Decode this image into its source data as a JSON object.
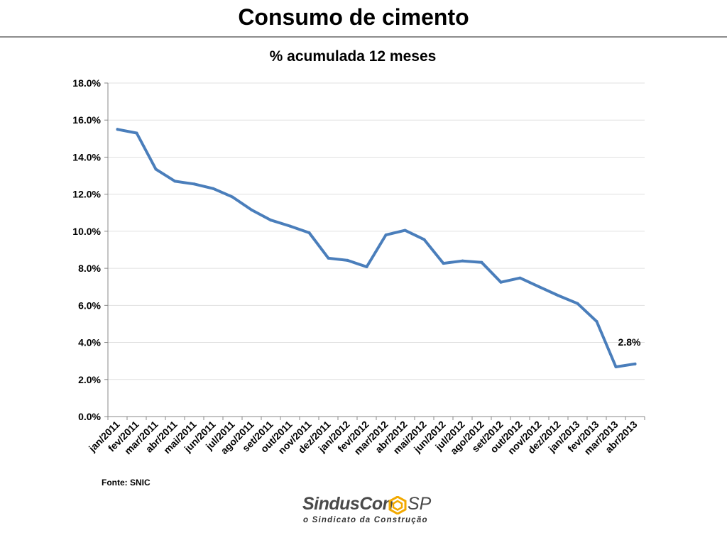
{
  "slide": {
    "title": "Consumo de cimento",
    "source": "Fonte: SNIC"
  },
  "logo": {
    "name": "SindusCon",
    "suffix": "SP",
    "tagline": "o Sindicato da Construção"
  },
  "colors": {
    "series": "#4a7ebb",
    "rule": "#8c8c8c",
    "grid": "#e0e0e0",
    "logo_mark": "#f2a900"
  },
  "chart_data": {
    "type": "line",
    "title": "% acumulada 12 meses",
    "xlabel": "",
    "ylabel": "",
    "ylim": [
      0,
      18
    ],
    "y_ticks": [
      0,
      2,
      4,
      6,
      8,
      10,
      12,
      14,
      16,
      18
    ],
    "y_tick_labels": [
      "0.0%",
      "2.0%",
      "4.0%",
      "6.0%",
      "8.0%",
      "10.0%",
      "12.0%",
      "14.0%",
      "16.0%",
      "18.0%"
    ],
    "grid": true,
    "legend": "none",
    "categories": [
      "jan/2011",
      "fev/2011",
      "mar/2011",
      "abr/2011",
      "mai/2011",
      "jun/2011",
      "jul/2011",
      "ago/2011",
      "set/2011",
      "out/2011",
      "nov/2011",
      "dez/2011",
      "jan/2012",
      "fev/2012",
      "mar/2012",
      "abr/2012",
      "mai/2012",
      "jun/2012",
      "jul/2012",
      "ago/2012",
      "set/2012",
      "out/2012",
      "nov/2012",
      "dez/2012",
      "jan/2013",
      "fev/2013",
      "mar/2013",
      "abr/2013"
    ],
    "series": [
      {
        "name": "Consumo de cimento",
        "values": [
          15.5,
          15.3,
          13.35,
          12.7,
          12.55,
          12.3,
          11.85,
          11.15,
          10.6,
          10.28,
          9.92,
          8.55,
          8.43,
          8.08,
          9.8,
          10.05,
          9.55,
          8.27,
          8.4,
          8.32,
          7.25,
          7.48,
          7.0,
          6.53,
          6.1,
          5.13,
          2.68,
          2.84
        ]
      }
    ],
    "annotations": [
      {
        "category": "abr/2013",
        "text": "2.8%"
      }
    ]
  }
}
